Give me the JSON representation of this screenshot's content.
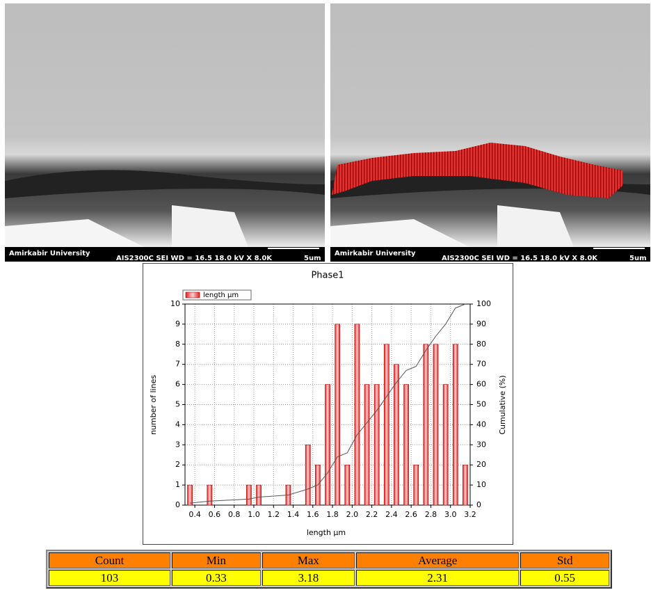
{
  "images": [
    {
      "institution": "Amirkabir University",
      "info": "AIS2300C   SEI   WD = 16.5   18.0 kV   X 8.0K",
      "scale": "5um"
    },
    {
      "institution": "Amirkabir University",
      "info": "AIS2300C   SEI   WD = 16.5   18.0 kV   X 8.0K",
      "scale": "5um"
    }
  ],
  "chart_data": {
    "type": "bar",
    "title": "Phase1",
    "x_label": "length µm",
    "y_label": "number of lines",
    "y2_label": "Cumulative (%)",
    "x": [
      0.35,
      0.55,
      0.95,
      1.05,
      1.35,
      1.55,
      1.65,
      1.75,
      1.85,
      1.95,
      2.05,
      2.15,
      2.25,
      2.35,
      2.45,
      2.55,
      2.65,
      2.75,
      2.85,
      2.95,
      3.05,
      3.15
    ],
    "series": [
      {
        "name": "length µm",
        "color": "#e02020",
        "values": [
          1,
          1,
          1,
          1,
          1,
          3,
          2,
          6,
          9,
          2,
          9,
          6,
          6,
          8,
          7,
          6,
          2,
          8,
          8,
          6,
          8,
          2
        ]
      },
      {
        "color": "#555555",
        "axis": "y2",
        "values": [
          1,
          2,
          3,
          4,
          5,
          8,
          10,
          16,
          24,
          26,
          35,
          41,
          47,
          54,
          61,
          67,
          69,
          77,
          84,
          90,
          98,
          100
        ]
      }
    ],
    "xlim": [
      0.3,
      3.2
    ],
    "xticks": [
      0.4,
      0.6,
      0.8,
      {
        "value": 1.0,
        "label": "1.0"
      },
      1.2,
      1.4,
      1.6,
      1.8,
      {
        "value": 2.0,
        "label": "2.0"
      },
      2.2,
      2.4,
      2.6,
      2.8,
      {
        "value": 3.0,
        "label": "3.0"
      },
      3.2
    ],
    "ylim": [
      0,
      10
    ],
    "yticks": [
      0,
      1,
      2,
      3,
      4,
      5,
      6,
      7,
      8,
      9,
      10
    ],
    "y2lim": [
      0,
      100
    ],
    "y2ticks": [
      0,
      10,
      20,
      30,
      40,
      50,
      60,
      70,
      80,
      90,
      100
    ],
    "grid": true,
    "legend": "top-left"
  },
  "table": {
    "header": [
      "Count",
      "Min",
      "Max",
      "Average",
      "Std"
    ],
    "rows": [
      [
        "103",
        "0.33",
        "3.18",
        "2.31",
        "0.55"
      ]
    ]
  }
}
